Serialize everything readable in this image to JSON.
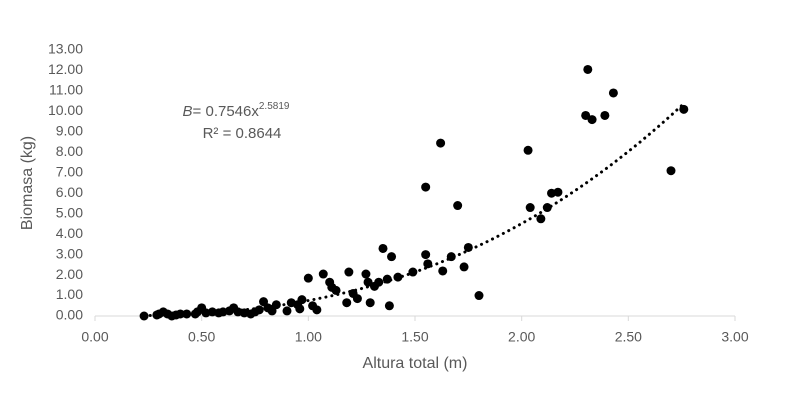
{
  "chart_data": {
    "type": "scatter",
    "x_label": "Altura total  (m)",
    "y_label": "Biomasa  (kg)",
    "color": "#000000",
    "x": [
      0.23,
      0.29,
      0.3,
      0.32,
      0.34,
      0.36,
      0.38,
      0.4,
      0.43,
      0.47,
      0.48,
      0.5,
      0.52,
      0.55,
      0.58,
      0.6,
      0.63,
      0.65,
      0.67,
      0.7,
      0.73,
      0.75,
      0.77,
      0.79,
      0.81,
      0.83,
      0.85,
      0.9,
      0.92,
      0.95,
      0.97,
      0.96,
      1.0,
      1.02,
      1.04,
      1.07,
      1.1,
      1.11,
      1.13,
      1.18,
      1.19,
      1.21,
      1.23,
      1.27,
      1.28,
      1.29,
      1.31,
      1.33,
      1.35,
      1.37,
      1.38,
      1.39,
      1.42,
      1.49,
      1.55,
      1.56,
      1.55,
      1.62,
      1.63,
      1.67,
      1.7,
      1.73,
      1.75,
      1.8,
      2.03,
      2.04,
      2.09,
      2.12,
      2.14,
      2.17,
      2.3,
      2.31,
      2.33,
      2.39,
      2.43,
      2.7,
      2.76
    ],
    "values": [
      0,
      0.05,
      0.1,
      0.2,
      0.1,
      0,
      0.05,
      0.1,
      0.1,
      0.1,
      0.2,
      0.4,
      0.15,
      0.2,
      0.15,
      0.2,
      0.25,
      0.4,
      0.2,
      0.15,
      0.1,
      0.2,
      0.3,
      0.7,
      0.4,
      0.25,
      0.55,
      0.25,
      0.65,
      0.55,
      0.8,
      0.35,
      1.85,
      0.5,
      0.3,
      2.05,
      1.65,
      1.4,
      1.25,
      0.65,
      2.15,
      1.1,
      0.85,
      2.05,
      1.65,
      0.65,
      1.45,
      1.65,
      3.3,
      1.8,
      0.5,
      2.9,
      1.9,
      2.15,
      3.0,
      2.55,
      6.3,
      8.45,
      2.2,
      2.9,
      5.4,
      2.4,
      3.35,
      1.0,
      8.1,
      5.3,
      4.75,
      5.3,
      6.0,
      6.05,
      9.8,
      12.05,
      9.6,
      9.8,
      10.9,
      7.1,
      10.1
    ],
    "trendline": {
      "type": "power",
      "coefficient": 0.7546,
      "exponent": 2.5819
    },
    "annotation": {
      "var": "B",
      "equation": "= 0.7546x",
      "exponent": "2.5819",
      "r2": "R² = 0.8644"
    },
    "xlim": [
      0,
      3
    ],
    "ylim": [
      0,
      13
    ],
    "xticks": [
      {
        "value": 0,
        "label": "0.00"
      },
      {
        "value": 0.5,
        "label": "0.50"
      },
      {
        "value": 1,
        "label": "1.00"
      },
      {
        "value": 1.5,
        "label": "1.50"
      },
      {
        "value": 2,
        "label": "2.00"
      },
      {
        "value": 2.5,
        "label": "2.50"
      },
      {
        "value": 3,
        "label": "3.00"
      }
    ],
    "yticks": [
      {
        "value": 0,
        "label": "0.00"
      },
      {
        "value": 1,
        "label": "1.00"
      },
      {
        "value": 2,
        "label": "2.00"
      },
      {
        "value": 3,
        "label": "3.00"
      },
      {
        "value": 4,
        "label": "4.00"
      },
      {
        "value": 5,
        "label": "5.00"
      },
      {
        "value": 6,
        "label": "6.00"
      },
      {
        "value": 7,
        "label": "7.00"
      },
      {
        "value": 8,
        "label": "8.00"
      },
      {
        "value": 9,
        "label": "9.00"
      },
      {
        "value": 10,
        "label": "10.00"
      },
      {
        "value": 11,
        "label": "11.00"
      },
      {
        "value": 12,
        "label": "12.00"
      },
      {
        "value": 13,
        "label": "13.00"
      }
    ]
  }
}
